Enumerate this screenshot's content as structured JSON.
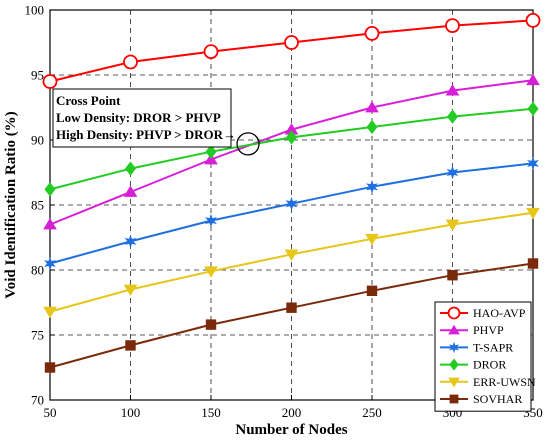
{
  "chart_data": {
    "type": "line",
    "title": "",
    "xlabel": "Number of Nodes",
    "ylabel": "Void Identification Ratio (%)",
    "x": [
      50,
      100,
      150,
      200,
      250,
      300,
      350
    ],
    "x_tick_labels": [
      "50",
      "100",
      "150",
      "200",
      "250",
      "300",
      "350"
    ],
    "xlim": [
      50,
      350
    ],
    "y_ticks": [
      70,
      75,
      80,
      85,
      90,
      95,
      100
    ],
    "y_tick_labels": [
      "70",
      "75",
      "80",
      "85",
      "90",
      "95",
      "100"
    ],
    "ylim": [
      70,
      100
    ],
    "grid": true,
    "legend_position": "bottom-right",
    "series": [
      {
        "name": "HAO-AVP",
        "color": "#ff0000",
        "marker": "circle-open",
        "values": [
          94.5,
          96.0,
          96.8,
          97.5,
          98.2,
          98.8,
          99.2
        ]
      },
      {
        "name": "PHVP",
        "color": "#d81fd8",
        "marker": "triangle-up",
        "values": [
          83.5,
          86.0,
          88.5,
          90.8,
          92.5,
          93.8,
          94.6
        ]
      },
      {
        "name": "T-SAPR",
        "color": "#1f6fe0",
        "marker": "star",
        "values": [
          80.5,
          82.2,
          83.8,
          85.1,
          86.4,
          87.5,
          88.2
        ]
      },
      {
        "name": "DROR",
        "color": "#22cc22",
        "marker": "diamond",
        "values": [
          86.2,
          87.8,
          89.1,
          90.2,
          91.0,
          91.8,
          92.4
        ]
      },
      {
        "name": "ERR-UWSN",
        "color": "#e6c619",
        "marker": "triangle-down",
        "values": [
          76.8,
          78.5,
          79.9,
          81.2,
          82.4,
          83.5,
          84.4
        ]
      },
      {
        "name": "SOVHAR",
        "color": "#7a2a0a",
        "marker": "square",
        "values": [
          72.5,
          74.2,
          75.8,
          77.1,
          78.4,
          79.6,
          80.5
        ]
      }
    ],
    "annotation": {
      "lines": [
        "Cross Point",
        "Low Density: DROR > PHVP",
        "High Density: PHVP > DROR→"
      ],
      "circle_at": {
        "x": 173,
        "y": 89.7
      }
    }
  }
}
